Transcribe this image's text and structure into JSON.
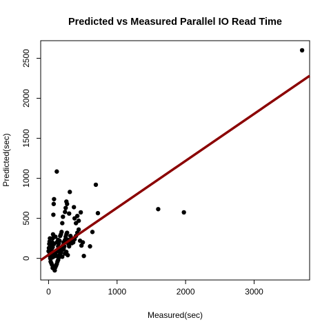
{
  "chart_data": {
    "type": "scatter",
    "title": "Predicted vs Measured Parallel IO Read Time",
    "xlabel": "Measured(sec)",
    "ylabel": "Predicted(sec)",
    "xlim": [
      -115,
      3810
    ],
    "ylim": [
      -270,
      2720
    ],
    "xticks": [
      0,
      1000,
      2000,
      3000
    ],
    "yticks": [
      0,
      500,
      1000,
      1500,
      2000,
      2500
    ],
    "grid": false,
    "legend": "none",
    "point_color": "#000000",
    "fit_line": {
      "color": "#8b0000",
      "intercept": 45,
      "slope": 0.587
    },
    "points": [
      [
        3700,
        2600
      ],
      [
        1600,
        615
      ],
      [
        1975,
        575
      ],
      [
        690,
        920
      ],
      [
        720,
        565
      ],
      [
        640,
        330
      ],
      [
        605,
        150
      ],
      [
        515,
        30
      ],
      [
        500,
        200
      ],
      [
        480,
        160
      ],
      [
        470,
        575
      ],
      [
        440,
        470
      ],
      [
        420,
        530
      ],
      [
        400,
        440
      ],
      [
        380,
        500
      ],
      [
        370,
        640
      ],
      [
        360,
        230
      ],
      [
        340,
        190
      ],
      [
        320,
        280
      ],
      [
        310,
        830
      ],
      [
        300,
        560
      ],
      [
        290,
        230
      ],
      [
        270,
        680
      ],
      [
        260,
        710
      ],
      [
        250,
        630
      ],
      [
        240,
        580
      ],
      [
        230,
        150
      ],
      [
        220,
        120
      ],
      [
        210,
        520
      ],
      [
        200,
        440
      ],
      [
        190,
        330
      ],
      [
        180,
        300
      ],
      [
        170,
        280
      ],
      [
        160,
        220
      ],
      [
        150,
        190
      ],
      [
        140,
        150
      ],
      [
        130,
        100
      ],
      [
        120,
        1085
      ],
      [
        110,
        80
      ],
      [
        100,
        50
      ],
      [
        90,
        30
      ],
      [
        80,
        740
      ],
      [
        75,
        680
      ],
      [
        70,
        545
      ],
      [
        65,
        300
      ],
      [
        60,
        250
      ],
      [
        55,
        200
      ],
      [
        50,
        160
      ],
      [
        45,
        120
      ],
      [
        40,
        90
      ],
      [
        35,
        60
      ],
      [
        30,
        20
      ],
      [
        25,
        0
      ],
      [
        20,
        250
      ],
      [
        15,
        210
      ],
      [
        10,
        180
      ],
      [
        5,
        130
      ],
      [
        0,
        90
      ],
      [
        30,
        -40
      ],
      [
        40,
        -60
      ],
      [
        50,
        -80
      ],
      [
        60,
        -120
      ],
      [
        70,
        -100
      ],
      [
        80,
        -130
      ],
      [
        90,
        -150
      ],
      [
        100,
        -110
      ],
      [
        110,
        -90
      ],
      [
        120,
        -70
      ],
      [
        130,
        -40
      ],
      [
        140,
        -20
      ],
      [
        150,
        10
      ],
      [
        160,
        40
      ],
      [
        170,
        60
      ],
      [
        180,
        70
      ],
      [
        190,
        100
      ],
      [
        200,
        130
      ],
      [
        210,
        160
      ],
      [
        220,
        200
      ],
      [
        230,
        210
      ],
      [
        240,
        230
      ],
      [
        250,
        270
      ],
      [
        260,
        300
      ],
      [
        270,
        320
      ],
      [
        280,
        210
      ],
      [
        290,
        180
      ],
      [
        300,
        150
      ],
      [
        320,
        220
      ],
      [
        340,
        250
      ],
      [
        360,
        200
      ],
      [
        380,
        240
      ],
      [
        400,
        280
      ],
      [
        420,
        320
      ],
      [
        440,
        360
      ],
      [
        460,
        220
      ],
      [
        120,
        200
      ],
      [
        140,
        230
      ],
      [
        100,
        270
      ],
      [
        80,
        180
      ],
      [
        60,
        140
      ],
      [
        40,
        100
      ],
      [
        20,
        60
      ],
      [
        10,
        40
      ],
      [
        180,
        120
      ],
      [
        210,
        110
      ],
      [
        260,
        80
      ],
      [
        280,
        40
      ],
      [
        150,
        90
      ],
      [
        90,
        60
      ],
      [
        70,
        20
      ],
      [
        50,
        10
      ],
      [
        120,
        30
      ],
      [
        200,
        20
      ],
      [
        240,
        60
      ]
    ]
  }
}
